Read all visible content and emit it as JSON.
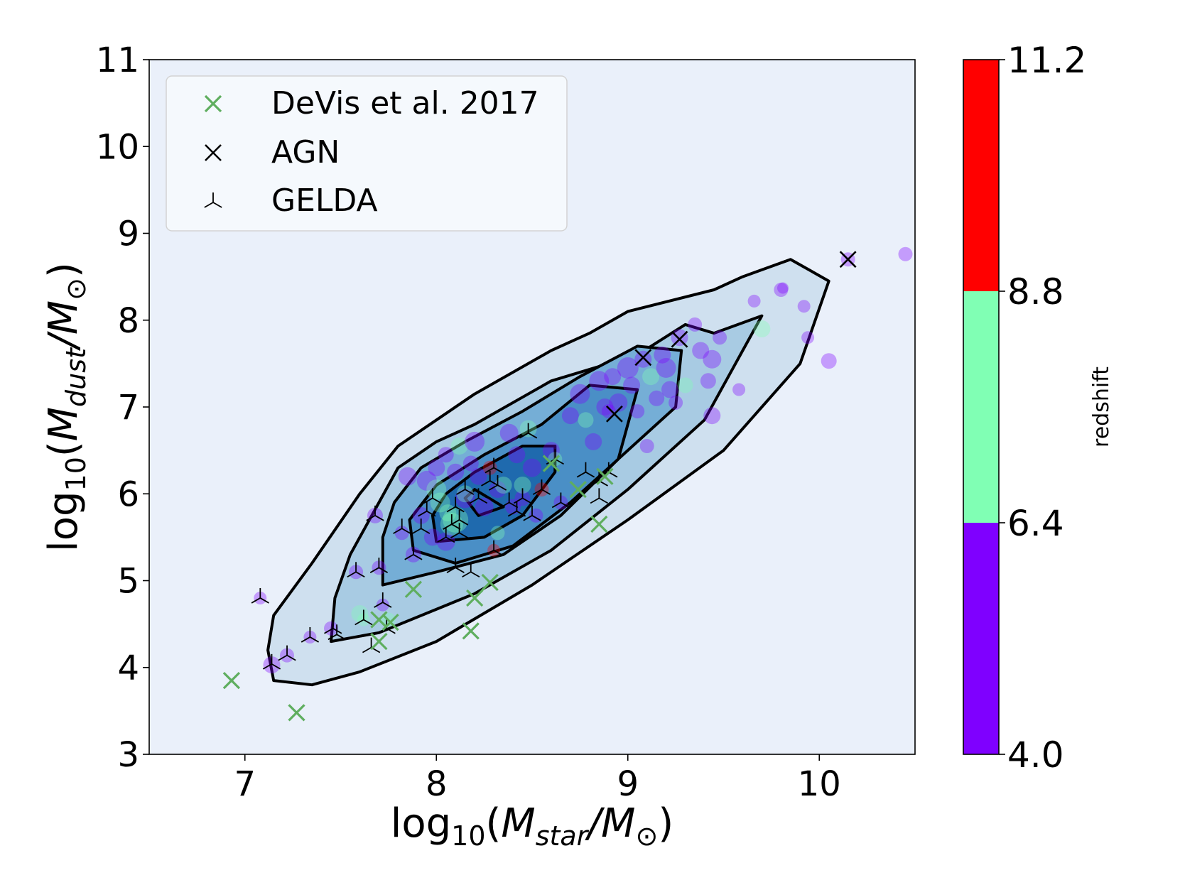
{
  "chart_data": {
    "type": "scatter",
    "xlabel": {
      "pre": "log",
      "sub": "10",
      "mid": "(",
      "m": "M",
      "msub": "star",
      "slash": "/M",
      "sun": "⊙",
      "post": ")"
    },
    "ylabel": {
      "pre": "log",
      "sub": "10",
      "mid": "(",
      "m": "M",
      "msub": "dust",
      "slash": "/M",
      "sun": "⊙",
      "post": ")"
    },
    "xlim": [
      6.5,
      10.5
    ],
    "ylim": [
      3,
      11
    ],
    "xticks": [
      "7",
      "8",
      "9",
      "10"
    ],
    "yticks": [
      "3",
      "4",
      "5",
      "6",
      "7",
      "8",
      "9",
      "10",
      "11"
    ],
    "grid": false,
    "legend": {
      "location": "upper-left",
      "entries": [
        "DeVis et al. 2017",
        "AGN",
        "GELDA"
      ]
    },
    "colorbar": {
      "label": "redshift",
      "ticks": [
        "4.0",
        "6.4",
        "8.8",
        "11.2"
      ],
      "bands": [
        {
          "from": 4.0,
          "to": 6.4,
          "color": "#7f00ff"
        },
        {
          "from": 6.4,
          "to": 8.8,
          "color": "#80ffb4"
        },
        {
          "from": 8.8,
          "to": 11.2,
          "color": "#ff0000"
        }
      ]
    },
    "colors": {
      "axes_bg": "#eaf0fa",
      "devis": "#5fae5f",
      "agn": "#000000",
      "gelda": "#000000",
      "contour_line": "#000000",
      "contour_fills": [
        "#cfe0ef",
        "#a8cbe3",
        "#75aed6",
        "#4a8fc6",
        "#1f6aae"
      ]
    },
    "contours": [
      [
        [
          7.15,
          3.85
        ],
        [
          7.35,
          3.8
        ],
        [
          7.6,
          3.95
        ],
        [
          8.0,
          4.3
        ],
        [
          8.5,
          4.95
        ],
        [
          9.0,
          5.7
        ],
        [
          9.5,
          6.5
        ],
        [
          9.9,
          7.5
        ],
        [
          10.05,
          8.45
        ],
        [
          9.85,
          8.7
        ],
        [
          9.6,
          8.5
        ],
        [
          9.45,
          8.35
        ],
        [
          9.0,
          8.1
        ],
        [
          8.8,
          7.85
        ],
        [
          8.6,
          7.65
        ],
        [
          8.2,
          7.15
        ],
        [
          8.0,
          6.85
        ],
        [
          7.8,
          6.55
        ],
        [
          7.6,
          6.0
        ],
        [
          7.35,
          5.2
        ],
        [
          7.15,
          4.6
        ],
        [
          7.12,
          4.2
        ]
      ],
      [
        [
          7.45,
          4.3
        ],
        [
          7.7,
          4.4
        ],
        [
          8.2,
          4.85
        ],
        [
          8.6,
          5.35
        ],
        [
          9.0,
          6.05
        ],
        [
          9.4,
          6.85
        ],
        [
          9.7,
          8.05
        ],
        [
          9.45,
          7.85
        ],
        [
          9.3,
          7.95
        ],
        [
          9.05,
          7.6
        ],
        [
          8.6,
          7.3
        ],
        [
          8.2,
          6.8
        ],
        [
          8.0,
          6.6
        ],
        [
          7.8,
          6.3
        ],
        [
          7.7,
          5.9
        ],
        [
          7.55,
          5.3
        ],
        [
          7.47,
          4.8
        ]
      ],
      [
        [
          7.72,
          4.95
        ],
        [
          8.0,
          5.1
        ],
        [
          8.35,
          5.3
        ],
        [
          8.65,
          5.75
        ],
        [
          8.95,
          6.4
        ],
        [
          9.25,
          7.0
        ],
        [
          9.28,
          7.65
        ],
        [
          9.05,
          7.7
        ],
        [
          8.75,
          7.35
        ],
        [
          8.45,
          6.95
        ],
        [
          8.15,
          6.6
        ],
        [
          7.92,
          6.3
        ],
        [
          7.78,
          5.9
        ],
        [
          7.72,
          5.5
        ]
      ],
      [
        [
          7.88,
          5.35
        ],
        [
          8.1,
          5.2
        ],
        [
          8.4,
          5.4
        ],
        [
          8.7,
          5.9
        ],
        [
          8.95,
          6.4
        ],
        [
          9.05,
          7.2
        ],
        [
          8.8,
          7.25
        ],
        [
          8.55,
          6.8
        ],
        [
          8.25,
          6.45
        ],
        [
          8.0,
          6.1
        ],
        [
          7.86,
          5.7
        ]
      ],
      [
        [
          8.0,
          5.45
        ],
        [
          8.25,
          5.5
        ],
        [
          8.45,
          5.75
        ],
        [
          8.62,
          6.25
        ],
        [
          8.62,
          6.55
        ],
        [
          8.45,
          6.55
        ],
        [
          8.2,
          6.25
        ],
        [
          8.05,
          6.0
        ],
        [
          7.98,
          5.75
        ]
      ],
      [
        [
          8.15,
          5.95
        ],
        [
          8.2,
          6.05
        ],
        [
          8.35,
          5.85
        ],
        [
          8.22,
          5.75
        ]
      ]
    ],
    "devis": [
      [
        6.93,
        3.85
      ],
      [
        7.27,
        3.48
      ],
      [
        7.7,
        4.3
      ],
      [
        7.76,
        4.52
      ],
      [
        7.7,
        4.55
      ],
      [
        7.88,
        4.9
      ],
      [
        8.18,
        4.42
      ],
      [
        8.2,
        4.8
      ],
      [
        8.28,
        4.98
      ],
      [
        8.85,
        5.65
      ],
      [
        8.88,
        6.2
      ],
      [
        8.74,
        6.05
      ],
      [
        8.6,
        6.35
      ]
    ],
    "agn": [
      [
        10.15,
        8.7
      ],
      [
        9.27,
        7.78
      ],
      [
        9.08,
        7.57
      ],
      [
        8.93,
        6.92
      ]
    ],
    "gelda": [
      [
        7.08,
        4.8
      ],
      [
        7.14,
        4.04
      ],
      [
        7.22,
        4.14
      ],
      [
        7.34,
        4.35
      ],
      [
        7.46,
        4.45
      ],
      [
        7.48,
        4.38
      ],
      [
        7.58,
        5.1
      ],
      [
        7.62,
        4.55
      ],
      [
        7.66,
        4.23
      ],
      [
        7.68,
        5.75
      ],
      [
        7.7,
        5.15
      ],
      [
        7.72,
        4.75
      ],
      [
        7.74,
        4.45
      ],
      [
        7.82,
        5.6
      ],
      [
        7.88,
        5.3
      ],
      [
        7.92,
        5.6
      ],
      [
        7.95,
        5.8
      ],
      [
        7.98,
        5.95
      ],
      [
        8.05,
        5.5
      ],
      [
        8.08,
        5.65
      ],
      [
        8.1,
        5.85
      ],
      [
        8.1,
        5.15
      ],
      [
        8.12,
        5.55
      ],
      [
        8.12,
        5.7
      ],
      [
        8.15,
        6.05
      ],
      [
        8.18,
        5.1
      ],
      [
        8.22,
        5.95
      ],
      [
        8.28,
        6.15
      ],
      [
        8.3,
        6.3
      ],
      [
        8.3,
        5.35
      ],
      [
        8.32,
        6.1
      ],
      [
        8.38,
        5.9
      ],
      [
        8.42,
        5.8
      ],
      [
        8.45,
        5.95
      ],
      [
        8.48,
        6.7
      ],
      [
        8.5,
        5.75
      ],
      [
        8.55,
        6.05
      ],
      [
        8.62,
        6.4
      ],
      [
        8.65,
        5.9
      ],
      [
        8.78,
        6.25
      ],
      [
        8.85,
        5.95
      ],
      [
        8.85,
        6.15
      ],
      [
        8.9,
        6.25
      ]
    ],
    "points": [
      [
        7.08,
        4.8,
        5.0,
        9
      ],
      [
        7.14,
        4.03,
        5.0,
        12
      ],
      [
        7.22,
        4.14,
        5.0,
        10
      ],
      [
        7.34,
        4.35,
        5.0,
        9
      ],
      [
        7.45,
        4.45,
        5.0,
        10
      ],
      [
        7.58,
        5.1,
        5.0,
        10
      ],
      [
        7.62,
        4.55,
        6.8,
        9
      ],
      [
        7.68,
        5.75,
        5.0,
        11
      ],
      [
        7.7,
        5.15,
        5.0,
        10
      ],
      [
        7.72,
        4.72,
        5.0,
        9
      ],
      [
        7.82,
        5.55,
        5.0,
        10
      ],
      [
        7.85,
        6.2,
        5.0,
        13
      ],
      [
        7.88,
        5.3,
        5.0,
        11
      ],
      [
        7.92,
        5.75,
        5.0,
        12
      ],
      [
        7.95,
        6.15,
        5.0,
        14
      ],
      [
        7.98,
        5.5,
        5.0,
        12
      ],
      [
        8.0,
        6.3,
        5.0,
        12
      ],
      [
        8.02,
        5.9,
        7.2,
        14
      ],
      [
        8.05,
        6.45,
        5.0,
        11
      ],
      [
        8.05,
        5.45,
        5.0,
        13
      ],
      [
        8.08,
        5.65,
        7.2,
        16
      ],
      [
        8.1,
        5.7,
        7.2,
        18
      ],
      [
        8.1,
        6.25,
        5.0,
        12
      ],
      [
        8.12,
        6.55,
        7.0,
        12
      ],
      [
        8.15,
        5.95,
        5.0,
        14
      ],
      [
        8.18,
        6.35,
        5.0,
        11
      ],
      [
        8.2,
        6.6,
        5.0,
        14
      ],
      [
        8.22,
        6.2,
        5.0,
        12
      ],
      [
        8.25,
        5.85,
        5.0,
        13
      ],
      [
        8.28,
        6.3,
        10.0,
        10
      ],
      [
        8.3,
        5.35,
        10.0,
        9
      ],
      [
        8.32,
        6.05,
        5.0,
        12
      ],
      [
        8.35,
        6.1,
        7.0,
        12
      ],
      [
        8.38,
        6.7,
        5.0,
        13
      ],
      [
        8.4,
        5.85,
        5.0,
        11
      ],
      [
        8.42,
        6.45,
        5.0,
        12
      ],
      [
        8.45,
        5.95,
        5.0,
        11
      ],
      [
        8.48,
        6.75,
        7.0,
        12
      ],
      [
        8.5,
        6.3,
        5.0,
        13
      ],
      [
        8.52,
        5.75,
        5.0,
        10
      ],
      [
        8.55,
        6.05,
        10.0,
        10
      ],
      [
        8.6,
        6.5,
        5.0,
        12
      ],
      [
        8.62,
        6.4,
        7.0,
        10
      ],
      [
        8.65,
        5.9,
        5.0,
        10
      ],
      [
        8.7,
        6.9,
        5.0,
        12
      ],
      [
        8.75,
        7.15,
        5.0,
        14
      ],
      [
        8.78,
        6.85,
        7.0,
        11
      ],
      [
        8.82,
        6.6,
        5.0,
        12
      ],
      [
        8.85,
        7.3,
        5.0,
        14
      ],
      [
        8.88,
        7.0,
        5.0,
        12
      ],
      [
        8.9,
        6.95,
        5.0,
        10
      ],
      [
        8.92,
        7.35,
        5.0,
        12
      ],
      [
        8.95,
        7.05,
        5.0,
        13
      ],
      [
        9.0,
        7.45,
        5.0,
        15
      ],
      [
        9.02,
        7.25,
        5.0,
        12
      ],
      [
        9.05,
        6.95,
        5.0,
        10
      ],
      [
        9.08,
        7.55,
        5.0,
        12
      ],
      [
        9.1,
        6.55,
        5.0,
        10
      ],
      [
        9.12,
        7.35,
        7.0,
        12
      ],
      [
        9.15,
        7.1,
        5.0,
        11
      ],
      [
        9.18,
        7.6,
        5.0,
        12
      ],
      [
        9.2,
        7.45,
        5.0,
        14
      ],
      [
        9.22,
        7.2,
        5.0,
        12
      ],
      [
        9.25,
        7.05,
        5.0,
        10
      ],
      [
        9.27,
        7.8,
        5.0,
        12
      ],
      [
        9.3,
        7.25,
        7.0,
        11
      ],
      [
        9.35,
        7.95,
        5.0,
        10
      ],
      [
        9.38,
        7.65,
        5.0,
        12
      ],
      [
        9.42,
        7.3,
        5.0,
        11
      ],
      [
        9.44,
        7.55,
        5.0,
        13
      ],
      [
        9.44,
        6.9,
        5.0,
        12
      ],
      [
        9.48,
        7.8,
        5.0,
        10
      ],
      [
        9.58,
        7.2,
        5.0,
        9
      ],
      [
        9.66,
        8.22,
        5.0,
        9
      ],
      [
        9.7,
        7.9,
        7.2,
        12
      ],
      [
        9.8,
        8.35,
        5.0,
        10
      ],
      [
        9.81,
        8.37,
        5.0,
        8
      ],
      [
        9.92,
        8.16,
        5.0,
        9
      ],
      [
        9.94,
        7.8,
        5.0,
        9
      ],
      [
        10.05,
        7.53,
        5.0,
        11
      ],
      [
        10.15,
        8.7,
        5.0,
        10
      ],
      [
        10.45,
        8.76,
        5.0,
        10
      ],
      [
        7.6,
        4.62,
        6.8,
        12
      ],
      [
        7.75,
        4.55,
        7.0,
        10
      ],
      [
        8.0,
        6.05,
        7.2,
        14
      ],
      [
        8.06,
        5.78,
        7.2,
        12
      ],
      [
        8.15,
        6.0,
        7.0,
        12
      ],
      [
        8.45,
        6.1,
        7.0,
        12
      ],
      [
        8.32,
        5.55,
        7.0,
        10
      ]
    ]
  }
}
